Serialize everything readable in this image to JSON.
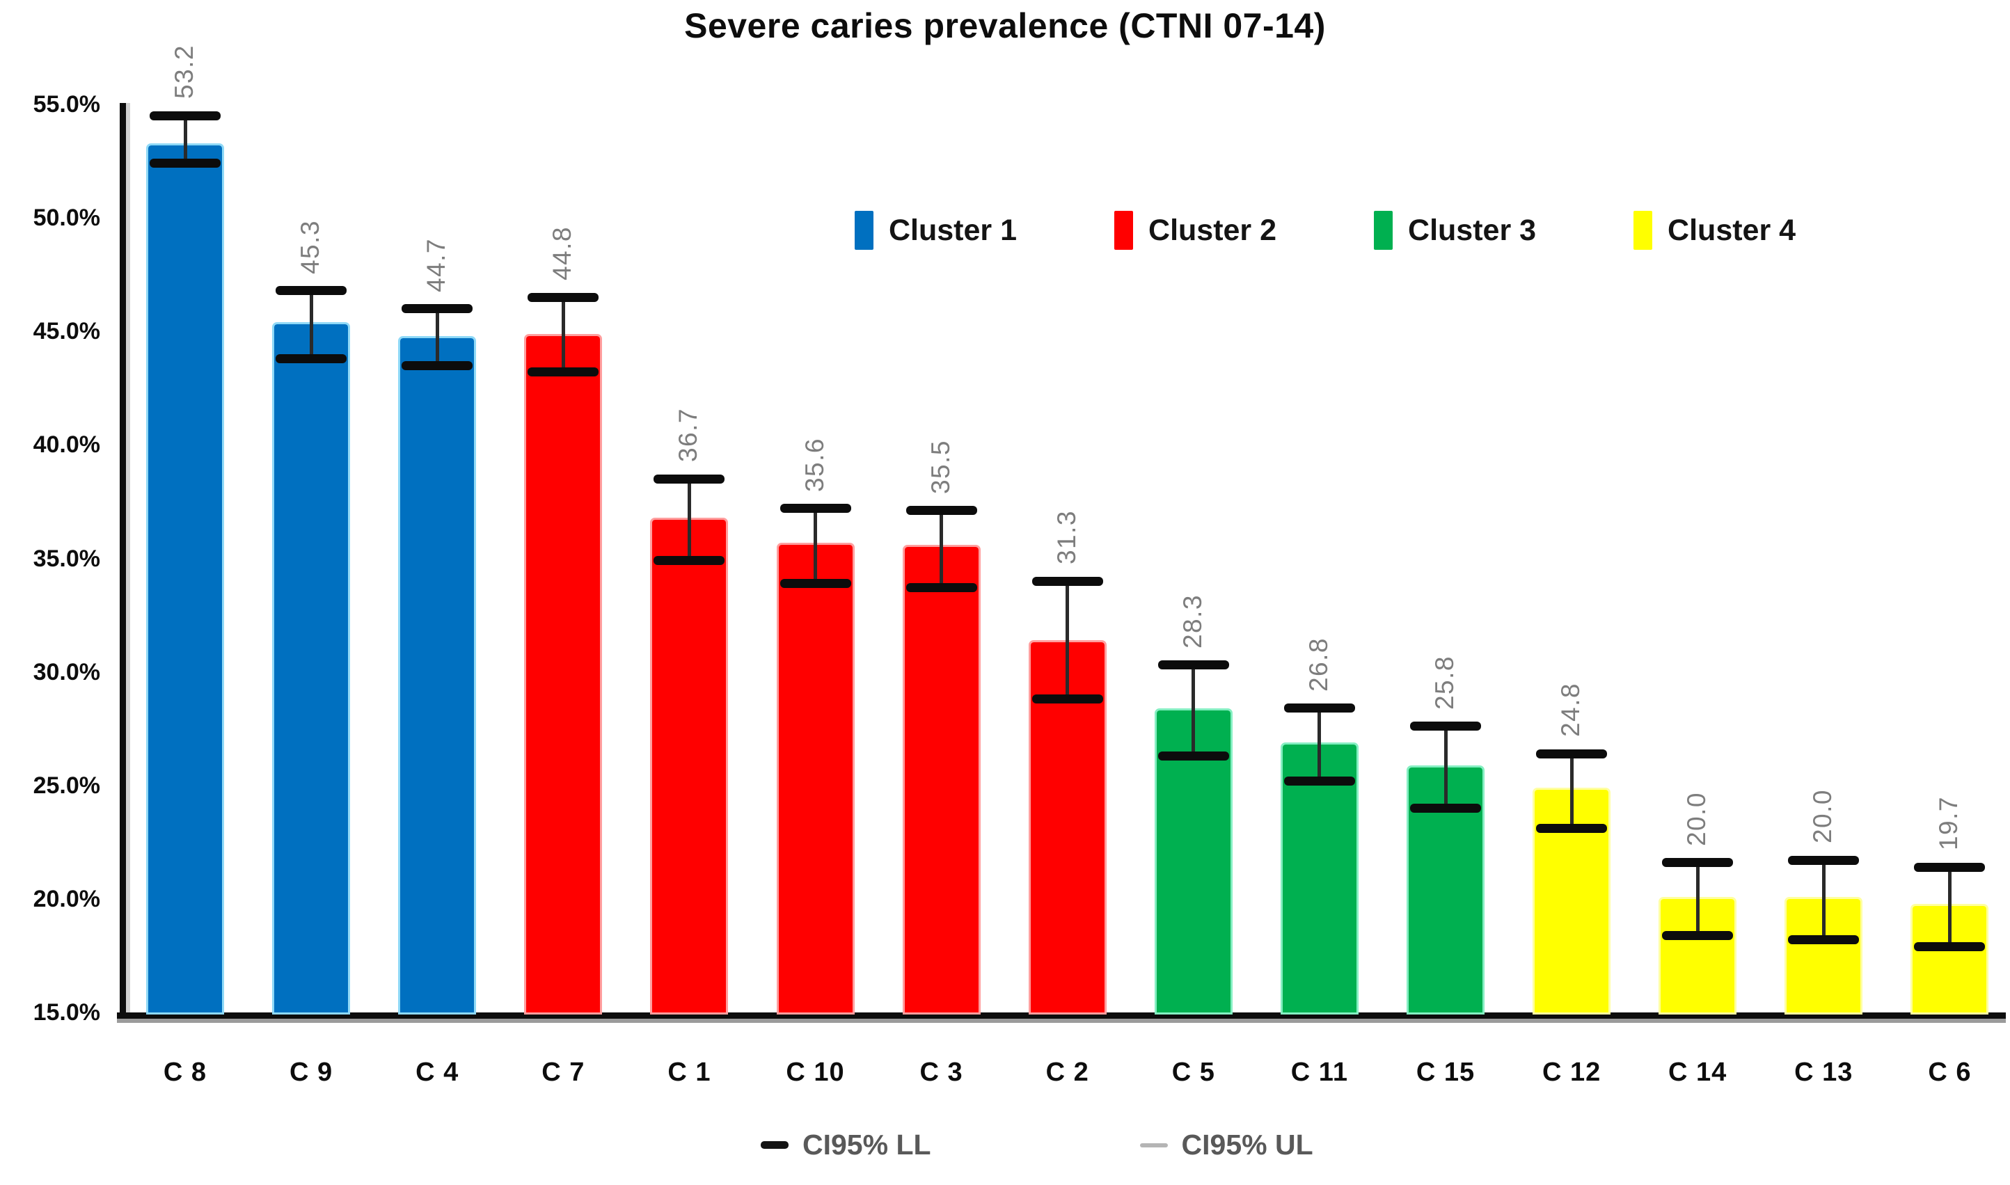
{
  "chart_data": {
    "type": "bar",
    "title": "Severe caries prevalence (CTNI 07-14)",
    "categories": [
      "C 8",
      "C 9",
      "C 4",
      "C 7",
      "C 1",
      "C 10",
      "C 3",
      "C 2",
      "C 5",
      "C 11",
      "C 15",
      "C 12",
      "C 14",
      "C 13",
      "C 6"
    ],
    "values": [
      53.2,
      45.3,
      44.7,
      44.8,
      36.7,
      35.6,
      35.5,
      31.3,
      28.3,
      26.8,
      25.8,
      24.8,
      20.0,
      20.0,
      19.7
    ],
    "ci95_ll": [
      52.4,
      43.8,
      43.5,
      43.2,
      34.9,
      33.9,
      33.7,
      28.8,
      26.3,
      25.2,
      24.0,
      23.1,
      18.4,
      18.2,
      17.9
    ],
    "ci95_ul": [
      54.5,
      46.8,
      46.0,
      46.5,
      38.5,
      37.2,
      37.1,
      34.0,
      30.3,
      28.4,
      27.6,
      26.4,
      21.6,
      21.7,
      21.4
    ],
    "clusters": [
      1,
      1,
      1,
      2,
      2,
      2,
      2,
      2,
      3,
      3,
      3,
      4,
      4,
      4,
      4
    ],
    "cluster_colors": {
      "1": "#0070C0",
      "2": "#FF0000",
      "3": "#00B050",
      "4": "#FFFF00"
    },
    "cluster_colors_light": {
      "1": "#8fd9f7",
      "2": "#ff9e9e",
      "3": "#85efc2",
      "4": "#ffffa0"
    },
    "ylabel": "",
    "xlabel": "",
    "ylim": [
      15,
      55
    ],
    "ytick_step": 5,
    "ytick_labels": [
      "55.0%",
      "50.0%",
      "45.0%",
      "40.0%",
      "35.0%",
      "30.0%",
      "25.0%",
      "20.0%",
      "15.0%"
    ],
    "grid": false,
    "bar_label_rotation": 90,
    "bar_label_color": "#7d7d7d",
    "legend_position": "upper-right-inside",
    "legend": [
      {
        "label": "Cluster 1",
        "color": "#0070C0"
      },
      {
        "label": "Cluster 2",
        "color": "#FF0000"
      },
      {
        "label": "Cluster 3",
        "color": "#00B050"
      },
      {
        "label": "Cluster 4",
        "color": "#FFFF00"
      }
    ],
    "error_legend": [
      {
        "label": "CI95% LL",
        "dash_color": "#141414",
        "dash_thickness": 11
      },
      {
        "label": "CI95% UL",
        "dash_color": "#b5b5b5",
        "dash_thickness": 6
      }
    ]
  }
}
